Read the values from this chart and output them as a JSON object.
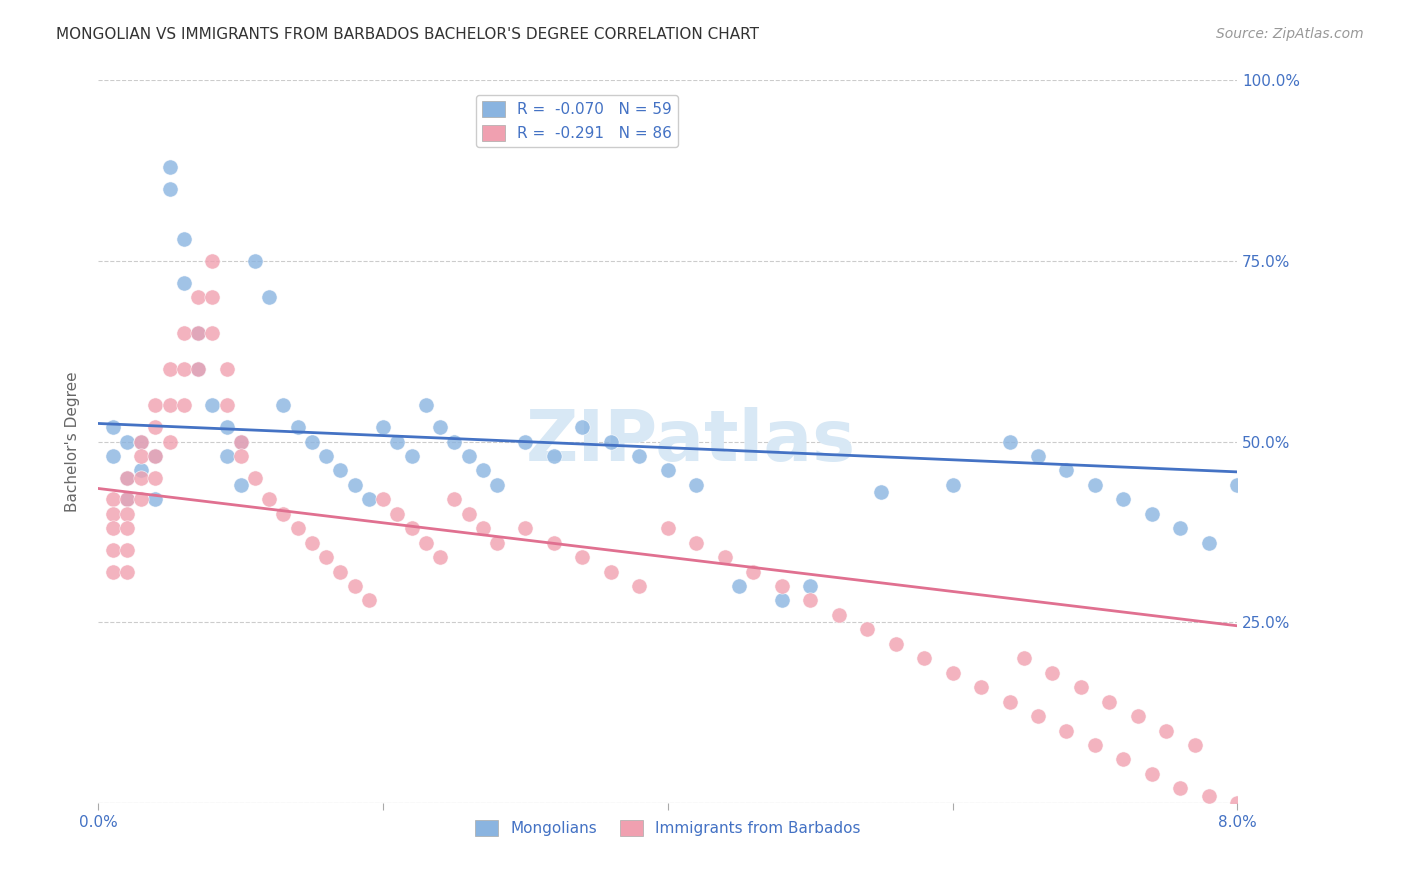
{
  "title": "MONGOLIAN VS IMMIGRANTS FROM BARBADOS BACHELOR'S DEGREE CORRELATION CHART",
  "source": "Source: ZipAtlas.com",
  "ylabel": "Bachelor's Degree",
  "xmin": 0.0,
  "xmax": 0.08,
  "ymin": 0.0,
  "ymax": 1.0,
  "yticks": [
    0.0,
    0.25,
    0.5,
    0.75,
    1.0
  ],
  "ytick_labels": [
    "",
    "25.0%",
    "50.0%",
    "75.0%",
    "100.0%"
  ],
  "xticks": [
    0.0,
    0.02,
    0.04,
    0.06,
    0.08
  ],
  "xtick_labels": [
    "0.0%",
    "",
    "",
    "",
    "8.0%"
  ],
  "legend_r1": "R =  -0.070",
  "legend_n1": "N = 59",
  "legend_r2": "R =  -0.291",
  "legend_n2": "N = 86",
  "blue_color": "#8ab4e0",
  "pink_color": "#f0a0b0",
  "blue_line_color": "#4472c4",
  "pink_line_color": "#e07090",
  "label1": "Mongolians",
  "label2": "Immigrants from Barbados",
  "watermark": "ZIPatlas",
  "blue_scatter_x": [
    0.001,
    0.001,
    0.002,
    0.002,
    0.002,
    0.003,
    0.003,
    0.004,
    0.004,
    0.005,
    0.005,
    0.006,
    0.006,
    0.007,
    0.007,
    0.008,
    0.009,
    0.009,
    0.01,
    0.01,
    0.011,
    0.012,
    0.013,
    0.014,
    0.015,
    0.016,
    0.017,
    0.018,
    0.019,
    0.02,
    0.021,
    0.022,
    0.023,
    0.024,
    0.025,
    0.026,
    0.027,
    0.028,
    0.03,
    0.032,
    0.034,
    0.036,
    0.038,
    0.04,
    0.042,
    0.045,
    0.048,
    0.05,
    0.055,
    0.06,
    0.064,
    0.066,
    0.068,
    0.07,
    0.072,
    0.074,
    0.076,
    0.078,
    0.08
  ],
  "blue_scatter_y": [
    0.52,
    0.48,
    0.5,
    0.45,
    0.42,
    0.5,
    0.46,
    0.48,
    0.42,
    0.85,
    0.88,
    0.78,
    0.72,
    0.65,
    0.6,
    0.55,
    0.52,
    0.48,
    0.5,
    0.44,
    0.75,
    0.7,
    0.55,
    0.52,
    0.5,
    0.48,
    0.46,
    0.44,
    0.42,
    0.52,
    0.5,
    0.48,
    0.55,
    0.52,
    0.5,
    0.48,
    0.46,
    0.44,
    0.5,
    0.48,
    0.52,
    0.5,
    0.48,
    0.46,
    0.44,
    0.3,
    0.28,
    0.3,
    0.43,
    0.44,
    0.5,
    0.48,
    0.46,
    0.44,
    0.42,
    0.4,
    0.38,
    0.36,
    0.44
  ],
  "pink_scatter_x": [
    0.001,
    0.001,
    0.001,
    0.001,
    0.001,
    0.002,
    0.002,
    0.002,
    0.002,
    0.002,
    0.002,
    0.003,
    0.003,
    0.003,
    0.003,
    0.004,
    0.004,
    0.004,
    0.004,
    0.005,
    0.005,
    0.005,
    0.006,
    0.006,
    0.006,
    0.007,
    0.007,
    0.007,
    0.008,
    0.008,
    0.008,
    0.009,
    0.009,
    0.01,
    0.01,
    0.011,
    0.012,
    0.013,
    0.014,
    0.015,
    0.016,
    0.017,
    0.018,
    0.019,
    0.02,
    0.021,
    0.022,
    0.023,
    0.024,
    0.025,
    0.026,
    0.027,
    0.028,
    0.03,
    0.032,
    0.034,
    0.036,
    0.038,
    0.04,
    0.042,
    0.044,
    0.046,
    0.048,
    0.05,
    0.052,
    0.054,
    0.056,
    0.058,
    0.06,
    0.062,
    0.064,
    0.066,
    0.068,
    0.07,
    0.072,
    0.074,
    0.076,
    0.078,
    0.08,
    0.065,
    0.067,
    0.069,
    0.071,
    0.073,
    0.075,
    0.077
  ],
  "pink_scatter_y": [
    0.42,
    0.4,
    0.38,
    0.35,
    0.32,
    0.45,
    0.42,
    0.4,
    0.38,
    0.35,
    0.32,
    0.5,
    0.48,
    0.45,
    0.42,
    0.55,
    0.52,
    0.48,
    0.45,
    0.6,
    0.55,
    0.5,
    0.65,
    0.6,
    0.55,
    0.7,
    0.65,
    0.6,
    0.75,
    0.7,
    0.65,
    0.6,
    0.55,
    0.5,
    0.48,
    0.45,
    0.42,
    0.4,
    0.38,
    0.36,
    0.34,
    0.32,
    0.3,
    0.28,
    0.42,
    0.4,
    0.38,
    0.36,
    0.34,
    0.42,
    0.4,
    0.38,
    0.36,
    0.38,
    0.36,
    0.34,
    0.32,
    0.3,
    0.38,
    0.36,
    0.34,
    0.32,
    0.3,
    0.28,
    0.26,
    0.24,
    0.22,
    0.2,
    0.18,
    0.16,
    0.14,
    0.12,
    0.1,
    0.08,
    0.06,
    0.04,
    0.02,
    0.01,
    0.0,
    0.2,
    0.18,
    0.16,
    0.14,
    0.12,
    0.1,
    0.08
  ],
  "blue_line_x0": 0.0,
  "blue_line_x1": 0.08,
  "blue_line_y0": 0.525,
  "blue_line_y1": 0.458,
  "pink_line_x0": 0.0,
  "pink_line_x1": 0.08,
  "pink_line_y0": 0.435,
  "pink_line_y1": 0.245,
  "title_fontsize": 11,
  "source_fontsize": 10,
  "axis_label_fontsize": 11,
  "tick_fontsize": 11,
  "legend_fontsize": 11,
  "watermark_fontsize": 52,
  "watermark_color": "#d8e8f5",
  "background_color": "#ffffff",
  "grid_color": "#cccccc",
  "right_axis_color": "#4472c4"
}
